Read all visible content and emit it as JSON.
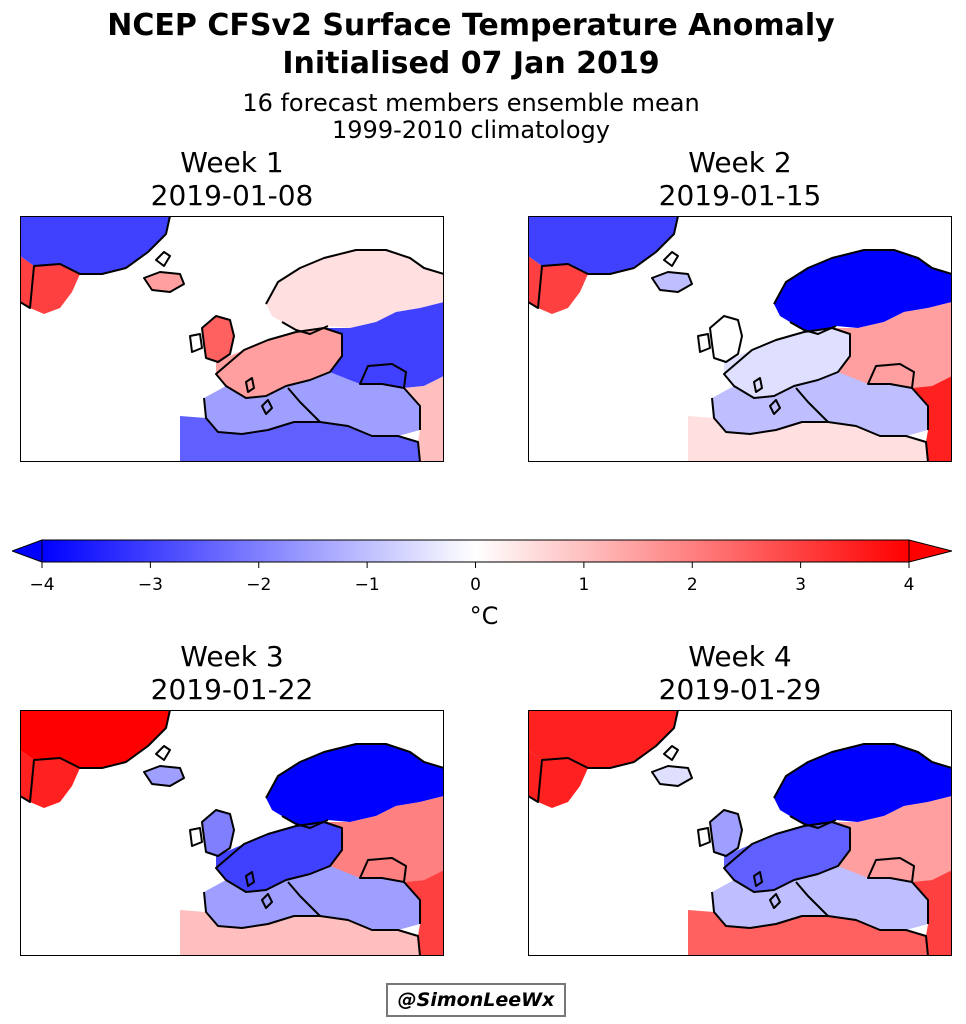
{
  "title_line1": "NCEP CFSv2 Surface Temperature Anomaly",
  "title_line2": "Initialised 07 Jan 2019",
  "subtitle_line1": "16 forecast members ensemble mean",
  "subtitle_line2": "1999-2010 climatology",
  "panels": [
    {
      "week": "Week 1",
      "date": "2019-01-08",
      "anomalies": {
        "greenland": -3,
        "greenland_sw": 3,
        "iceland": 1.5,
        "scandinavia": 0.5,
        "uk": 2.5,
        "western_europe": 1.5,
        "eastern_europe": -3,
        "mediterranean": -1.5,
        "north_africa": -2.5,
        "middle_east": 1
      }
    },
    {
      "week": "Week 2",
      "date": "2019-01-15",
      "anomalies": {
        "greenland": -3,
        "greenland_sw": 3,
        "iceland": -1,
        "scandinavia": -4,
        "uk": 0,
        "western_europe": -0.5,
        "eastern_europe": 1.5,
        "mediterranean": -1,
        "north_africa": 0.5,
        "middle_east": 3.5
      }
    },
    {
      "week": "Week 3",
      "date": "2019-01-22",
      "anomalies": {
        "greenland": 4,
        "greenland_sw": 3.5,
        "iceland": -1.5,
        "scandinavia": -4,
        "uk": -2,
        "western_europe": -3,
        "eastern_europe": 2,
        "mediterranean": -1.5,
        "north_africa": 1,
        "middle_east": 3
      }
    },
    {
      "week": "Week 4",
      "date": "2019-01-29",
      "anomalies": {
        "greenland": 3.5,
        "greenland_sw": 3.5,
        "iceland": -0.5,
        "scandinavia": -4,
        "uk": -1.5,
        "western_europe": -2.5,
        "eastern_europe": 1.5,
        "mediterranean": -1,
        "north_africa": 2.5,
        "middle_east": 3
      }
    }
  ],
  "colorbar": {
    "min": -4,
    "max": 4,
    "ticks": [
      "−4",
      "−3",
      "−2",
      "−1",
      "0",
      "1",
      "2",
      "3",
      "4"
    ],
    "unit": "°C",
    "colors": {
      "cold": "#0000ff",
      "neutral": "#ffffff",
      "warm": "#ff0000"
    }
  },
  "credit": "@SimonLeeWx"
}
